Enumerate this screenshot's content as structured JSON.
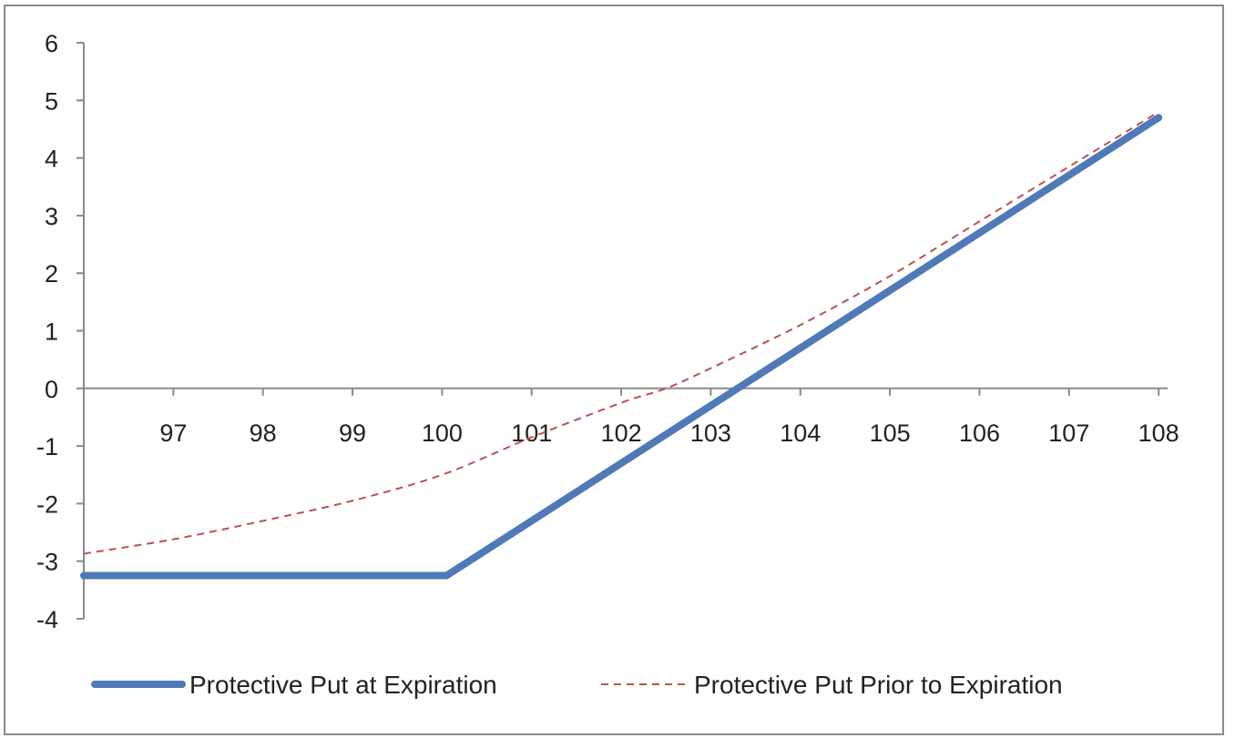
{
  "chart_data": {
    "type": "line",
    "title": "",
    "xlabel": "",
    "ylabel": "",
    "xlim": [
      96,
      108.1
    ],
    "ylim": [
      -4,
      6
    ],
    "x_ticks": [
      97,
      98,
      99,
      100,
      101,
      102,
      103,
      104,
      105,
      106,
      107,
      108
    ],
    "y_ticks": [
      -4,
      -3,
      -2,
      -1,
      0,
      1,
      2,
      3,
      4,
      5,
      6
    ],
    "grid": false,
    "legend_position": "bottom",
    "series": [
      {
        "name": "Protective Put at Expiration",
        "color": "#4f79b7",
        "style": "solid",
        "x": [
          96,
          100.05,
          108
        ],
        "y": [
          -3.25,
          -3.25,
          4.7
        ]
      },
      {
        "name": "Protective Put Prior to Expiration",
        "color": "#c0504d",
        "style": "dashed",
        "x": [
          96,
          97,
          98,
          99,
          100,
          101,
          102,
          102.5,
          103,
          104,
          105,
          106,
          107,
          108
        ],
        "y": [
          -2.87,
          -2.62,
          -2.3,
          -1.95,
          -1.5,
          -0.85,
          -0.25,
          0.0,
          0.35,
          1.1,
          1.95,
          2.9,
          3.85,
          4.8
        ]
      }
    ]
  }
}
